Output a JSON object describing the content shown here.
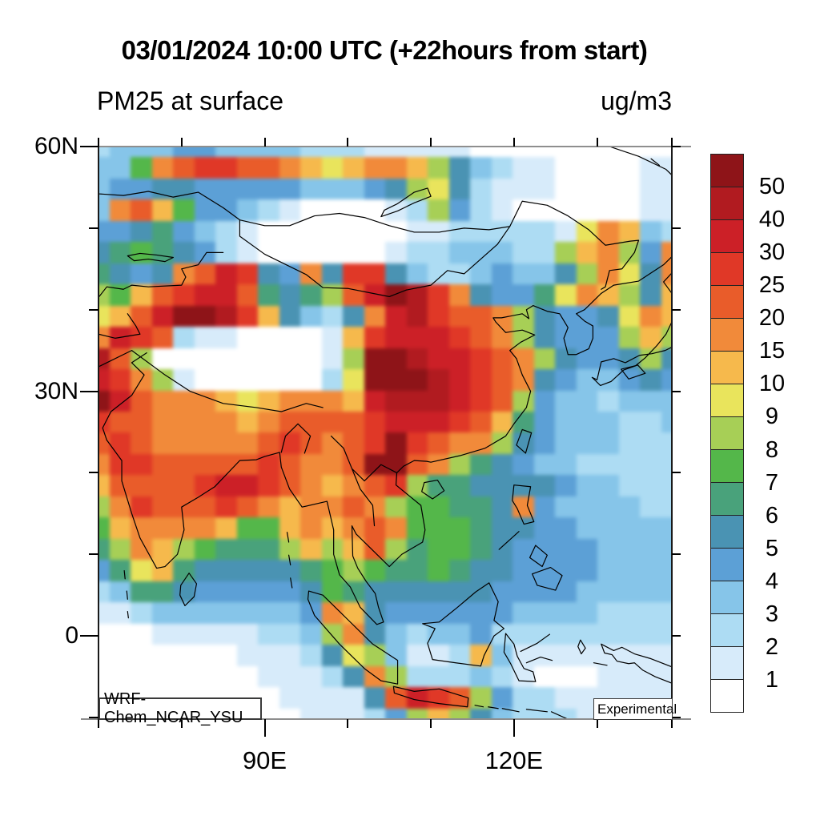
{
  "header": {
    "title": "03/01/2024 10:00 UTC (+22hours from start)",
    "field_label": "PM25 at surface",
    "units_label": "ug/m3"
  },
  "annotations": {
    "model_label": "WRF-Chem_NCAR_YSU",
    "experimental_label": "Experimental"
  },
  "axes": {
    "lon_min": 70,
    "lon_max": 139,
    "lat_min": -10.2,
    "lat_max": 60,
    "x_major": [
      {
        "label": "90E",
        "lon": 90
      },
      {
        "label": "120E",
        "lon": 120
      }
    ],
    "x_minor_lons": [
      70,
      80,
      100,
      110,
      130,
      139
    ],
    "top_tick_lons": [
      70,
      80,
      90,
      100,
      110,
      120,
      130,
      139
    ],
    "y_major": [
      {
        "label": "60N",
        "lat": 60
      },
      {
        "label": "30N",
        "lat": 30
      },
      {
        "label": "0",
        "lat": 0
      }
    ],
    "y_minor_lats": [
      50,
      40,
      20,
      10,
      -10
    ],
    "right_tick_lats": [
      60,
      50,
      40,
      30,
      20,
      10,
      0,
      -10
    ]
  },
  "colorbar": {
    "boundary_labels": [
      "50",
      "40",
      "30",
      "25",
      "20",
      "15",
      "10",
      "9",
      "8",
      "7",
      "6",
      "5",
      "4",
      "3",
      "2",
      "1"
    ],
    "colors_top_to_bottom": [
      "#8e1418",
      "#b11b20",
      "#cc2027",
      "#e03827",
      "#e95c2a",
      "#f18a3a",
      "#f6b94c",
      "#e9e45c",
      "#a7cf56",
      "#54b74a",
      "#49a27b",
      "#4a93b3",
      "#5ca0d6",
      "#86c5e9",
      "#addcf3",
      "#d7ebfa",
      "#ffffff"
    ]
  },
  "chart_data": {
    "type": "heatmap",
    "title": "03/01/2024 10:00 UTC (+22hours from start)",
    "subtitle": "PM25 at surface",
    "units": "ug/m3",
    "legend_levels": [
      1,
      2,
      3,
      4,
      5,
      6,
      7,
      8,
      9,
      10,
      15,
      20,
      25,
      30,
      40,
      50
    ],
    "palette_low_to_high": [
      "#ffffff",
      "#d7ebfa",
      "#addcf3",
      "#86c5e9",
      "#5ca0d6",
      "#4a93b3",
      "#49a27b",
      "#54b74a",
      "#a7cf56",
      "#e9e45c",
      "#f6b94c",
      "#f18a3a",
      "#e95c2a",
      "#e03827",
      "#cc2027",
      "#b11b20",
      "#8e1418"
    ],
    "lon_range": [
      70,
      139
    ],
    "lat_range": [
      -10.2,
      60
    ],
    "x_tick_labels": [
      "90E",
      "120E"
    ],
    "y_tick_labels": [
      "60N",
      "30N",
      "0"
    ],
    "grid_encoding": "28x28 cells, rows listed north to south covering lat 60N..10S, cols west to east covering lon 70E..139E; each char 0-9,A-G is an index into palette_low_to_high (0 = <1 ug/m3 ... G = >50 ug/m3)",
    "rows": [
      "2333443333222111110000000000",
      "337BCDDCCBA9ABBA853211000011",
      "3445544444333458952111000011",
      "3BCA744321000012842100000011",
      "445643210000000112222219BA32",
      "56765421000000122333228AB84B",
      "6545BCED54B5DD5322343358B95B",
      "87ACDEEC6568CEGFDB54469BA85A",
      "9ACEGGFDA5325BEFDCCB854459BA",
      "BEDC21100001ADEEEDCB854448A8",
      "FC80000000018GGFEEDCB8544585",
      "EDB8100000029GGGFEDCB5433454",
      "GECBBBA9ABBBAEFFFEDC84332333",
      "DCCBBBBABCCCCDEEEDCA64333223",
      "CDCBBBBBCDCBCDGDCBB854333222",
      "BDDCCCCCDCBBCGGCB86543322222",
      "ACCCCDEEDCBABCD8665555433222",
      "8BDCCCDCBABBCB877665B4333322",
      "7ABBBBA77ABABCB7776554433333",
      "68BA876668A8AC86776544443333",
      "469A655555678766765544443333",
      "2366544444576555555444433333",
      "11233333334BA544444433332222",
      "000111112238B532334222222222",
      "000000011125983112A311111111",
      "0000000011125B82223210001111",
      "00000000011115CEDC8422111111",
      "0000000000111248A85322211111"
    ]
  }
}
